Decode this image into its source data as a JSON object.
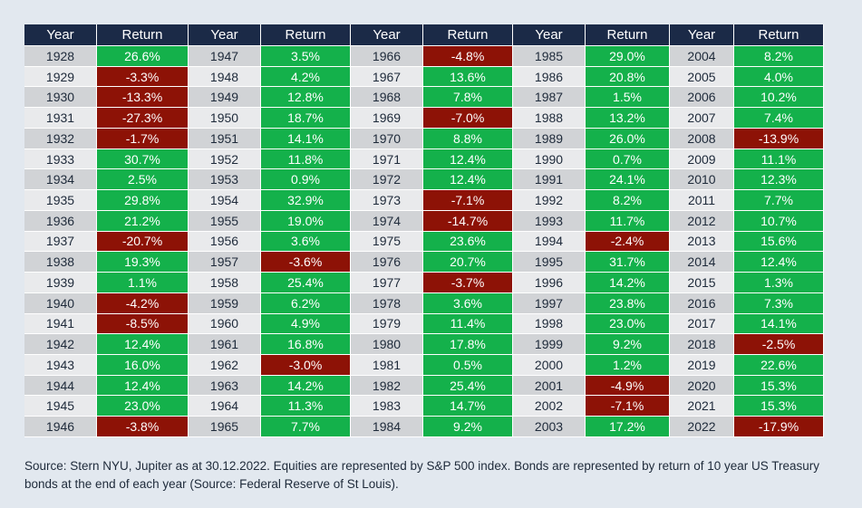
{
  "chart_data": {
    "type": "table",
    "headers": [
      "Year",
      "Return",
      "Year",
      "Return",
      "Year",
      "Return",
      "Year",
      "Return",
      "Year",
      "Return"
    ],
    "rows": [
      [
        1928,
        "26.6%",
        1947,
        "3.5%",
        1966,
        "-4.8%",
        1985,
        "29.0%",
        2004,
        "8.2%"
      ],
      [
        1929,
        "-3.3%",
        1948,
        "4.2%",
        1967,
        "13.6%",
        1986,
        "20.8%",
        2005,
        "4.0%"
      ],
      [
        1930,
        "-13.3%",
        1949,
        "12.8%",
        1968,
        "7.8%",
        1987,
        "1.5%",
        2006,
        "10.2%"
      ],
      [
        1931,
        "-27.3%",
        1950,
        "18.7%",
        1969,
        "-7.0%",
        1988,
        "13.2%",
        2007,
        "7.4%"
      ],
      [
        1932,
        "-1.7%",
        1951,
        "14.1%",
        1970,
        "8.8%",
        1989,
        "26.0%",
        2008,
        "-13.9%"
      ],
      [
        1933,
        "30.7%",
        1952,
        "11.8%",
        1971,
        "12.4%",
        1990,
        "0.7%",
        2009,
        "11.1%"
      ],
      [
        1934,
        "2.5%",
        1953,
        "0.9%",
        1972,
        "12.4%",
        1991,
        "24.1%",
        2010,
        "12.3%"
      ],
      [
        1935,
        "29.8%",
        1954,
        "32.9%",
        1973,
        "-7.1%",
        1992,
        "8.2%",
        2011,
        "7.7%"
      ],
      [
        1936,
        "21.2%",
        1955,
        "19.0%",
        1974,
        "-14.7%",
        1993,
        "11.7%",
        2012,
        "10.7%"
      ],
      [
        1937,
        "-20.7%",
        1956,
        "3.6%",
        1975,
        "23.6%",
        1994,
        "-2.4%",
        2013,
        "15.6%"
      ],
      [
        1938,
        "19.3%",
        1957,
        "-3.6%",
        1976,
        "20.7%",
        1995,
        "31.7%",
        2014,
        "12.4%"
      ],
      [
        1939,
        "1.1%",
        1958,
        "25.4%",
        1977,
        "-3.7%",
        1996,
        "14.2%",
        2015,
        "1.3%"
      ],
      [
        1940,
        "-4.2%",
        1959,
        "6.2%",
        1978,
        "3.6%",
        1997,
        "23.8%",
        2016,
        "7.3%"
      ],
      [
        1941,
        "-8.5%",
        1960,
        "4.9%",
        1979,
        "11.4%",
        1998,
        "23.0%",
        2017,
        "14.1%"
      ],
      [
        1942,
        "12.4%",
        1961,
        "16.8%",
        1980,
        "17.8%",
        1999,
        "9.2%",
        2018,
        "-2.5%"
      ],
      [
        1943,
        "16.0%",
        1962,
        "-3.0%",
        1981,
        "0.5%",
        2000,
        "1.2%",
        2019,
        "22.6%"
      ],
      [
        1944,
        "12.4%",
        1963,
        "14.2%",
        1982,
        "25.4%",
        2001,
        "-4.9%",
        2020,
        "15.3%"
      ],
      [
        1945,
        "23.0%",
        1964,
        "11.3%",
        1983,
        "14.7%",
        2002,
        "-7.1%",
        2021,
        "15.3%"
      ],
      [
        1946,
        "-3.8%",
        1965,
        "7.7%",
        1984,
        "9.2%",
        2003,
        "17.2%",
        2022,
        "-17.9%"
      ]
    ],
    "colors": {
      "header_bg": "#1b2a47",
      "positive": "#14b14b",
      "negative": "#8d1206"
    }
  },
  "source_note": "Source: Stern NYU, Jupiter as at 30.12.2022. Equities are represented by S&P 500 index. Bonds are represented by return of 10 year US Treasury bonds at the end of each year (Source: Federal Reserve of St Louis)."
}
